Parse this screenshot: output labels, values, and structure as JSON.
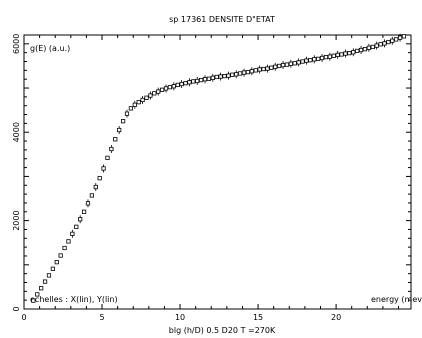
{
  "chart_data": {
    "type": "scatter",
    "title": "sp 17361 DENSITE D\"ETAT",
    "xlabel": "blg (h/D) 0.5 D20 T =270K",
    "ylabel": "",
    "xlim": [
      0,
      24.8
    ],
    "ylim": [
      0,
      6200
    ],
    "xticks": [
      0,
      5,
      10,
      15,
      20
    ],
    "yticks": [
      0,
      2000,
      4000,
      6000
    ],
    "grid": false,
    "legend": "none",
    "annotations": {
      "ylabel_inside": "g(E)  (a.u.)",
      "scales": "echelles : X(lin), Y(lin)",
      "xunit": "energy (mev"
    },
    "marker": "open-square",
    "color": "#000000",
    "series": [
      {
        "x": [
          0.6,
          0.85,
          1.1,
          1.35,
          1.6,
          1.85,
          2.1,
          2.35,
          2.6,
          2.85,
          3.1,
          3.35,
          3.6,
          3.85,
          4.1,
          4.35,
          4.6,
          4.85,
          5.1,
          5.35,
          5.6,
          5.85,
          6.1,
          6.35,
          6.6,
          6.85,
          7.1,
          7.35,
          7.6,
          7.85,
          8.1,
          8.35,
          8.6,
          8.85,
          9.1,
          9.35,
          9.6,
          9.85,
          10.1,
          10.35,
          10.6,
          10.85,
          11.1,
          11.35,
          11.6,
          11.85,
          12.1,
          12.35,
          12.6,
          12.85,
          13.1,
          13.35,
          13.6,
          13.85,
          14.1,
          14.35,
          14.6,
          14.85,
          15.1,
          15.35,
          15.6,
          15.85,
          16.1,
          16.35,
          16.6,
          16.85,
          17.1,
          17.35,
          17.6,
          17.85,
          18.1,
          18.35,
          18.6,
          18.85,
          19.1,
          19.35,
          19.6,
          19.85,
          20.1,
          20.35,
          20.6,
          20.85,
          21.1,
          21.35,
          21.6,
          21.85,
          22.1,
          22.35,
          22.6,
          22.85,
          23.1,
          23.35,
          23.6,
          23.85,
          24.1,
          24.35
        ],
        "y": [
          190,
          330,
          470,
          620,
          760,
          910,
          1060,
          1210,
          1380,
          1530,
          1700,
          1860,
          2030,
          2200,
          2390,
          2570,
          2760,
          2960,
          3180,
          3420,
          3620,
          3840,
          4050,
          4250,
          4420,
          4540,
          4620,
          4680,
          4730,
          4780,
          4830,
          4880,
          4920,
          4960,
          4990,
          5020,
          5040,
          5070,
          5090,
          5110,
          5130,
          5150,
          5160,
          5180,
          5200,
          5210,
          5230,
          5250,
          5260,
          5270,
          5280,
          5300,
          5310,
          5330,
          5350,
          5360,
          5380,
          5400,
          5420,
          5430,
          5440,
          5460,
          5480,
          5500,
          5520,
          5530,
          5550,
          5560,
          5580,
          5600,
          5620,
          5630,
          5650,
          5660,
          5680,
          5700,
          5710,
          5730,
          5750,
          5760,
          5780,
          5790,
          5810,
          5840,
          5860,
          5880,
          5910,
          5930,
          5960,
          5990,
          6010,
          6040,
          6070,
          6100,
          6140,
          6170
        ]
      }
    ]
  }
}
